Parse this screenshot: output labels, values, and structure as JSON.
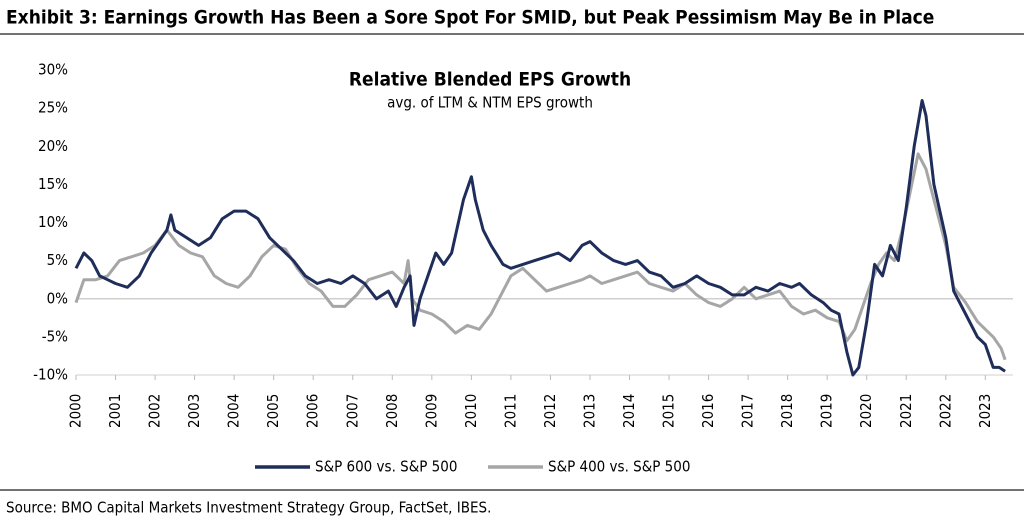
{
  "chart_data": {
    "type": "line",
    "title": "Exhibit 3: Earnings Growth Has Been a Sore Spot For SMID, but Peak Pessimism May Be in Place",
    "chart_title": "Relative Blended EPS Growth",
    "subtitle": "avg. of LTM & NTM EPS growth",
    "source": "Source: BMO Capital Markets Investment Strategy Group, FactSet, IBES.",
    "xlim": [
      2000,
      2023.7
    ],
    "xticks": [
      2000,
      2001,
      2002,
      2003,
      2004,
      2005,
      2006,
      2007,
      2008,
      2009,
      2010,
      2011,
      2012,
      2013,
      2014,
      2015,
      2016,
      2017,
      2018,
      2019,
      2020,
      2021,
      2022,
      2023
    ],
    "ylim": [
      -10,
      30
    ],
    "yticks": [
      {
        "value": 30,
        "label": "30%"
      },
      {
        "value": 25,
        "label": "25%"
      },
      {
        "value": 20,
        "label": "20%"
      },
      {
        "value": 15,
        "label": "15%"
      },
      {
        "value": 10,
        "label": "10%"
      },
      {
        "value": 5,
        "label": "5%"
      },
      {
        "value": 0,
        "label": "0%"
      },
      {
        "value": -5,
        "label": "-5%"
      },
      {
        "value": -10,
        "label": "-10%"
      }
    ],
    "series": [
      {
        "name": "S&P 600 vs. S&P 500",
        "color": "#1f2d5a",
        "x": [
          2000.0,
          2000.2,
          2000.4,
          2000.6,
          2000.8,
          2001.0,
          2001.3,
          2001.6,
          2001.9,
          2002.1,
          2002.3,
          2002.4,
          2002.5,
          2002.8,
          2003.1,
          2003.4,
          2003.7,
          2004.0,
          2004.3,
          2004.6,
          2004.9,
          2005.2,
          2005.5,
          2005.8,
          2006.1,
          2006.4,
          2006.7,
          2007.0,
          2007.3,
          2007.6,
          2007.9,
          2008.1,
          2008.3,
          2008.45,
          2008.55,
          2008.7,
          2008.9,
          2009.1,
          2009.3,
          2009.5,
          2009.8,
          2010.0,
          2010.1,
          2010.3,
          2010.5,
          2010.8,
          2011.0,
          2011.3,
          2011.6,
          2011.9,
          2012.2,
          2012.5,
          2012.8,
          2013.0,
          2013.3,
          2013.6,
          2013.9,
          2014.2,
          2014.5,
          2014.8,
          2015.1,
          2015.4,
          2015.7,
          2016.0,
          2016.3,
          2016.6,
          2016.9,
          2017.2,
          2017.5,
          2017.8,
          2018.1,
          2018.3,
          2018.6,
          2018.9,
          2019.1,
          2019.3,
          2019.5,
          2019.65,
          2019.8,
          2020.0,
          2020.2,
          2020.4,
          2020.6,
          2020.8,
          2021.0,
          2021.2,
          2021.4,
          2021.5,
          2021.7,
          2022.0,
          2022.2,
          2022.5,
          2022.8,
          2023.0,
          2023.2,
          2023.35,
          2023.5
        ],
        "values": [
          4,
          6,
          5,
          3,
          2.5,
          2,
          1.5,
          3,
          6,
          7.5,
          9,
          11,
          9,
          8,
          7,
          8,
          10.5,
          11.5,
          11.5,
          10.5,
          8,
          6.5,
          5,
          3,
          2,
          2.5,
          2,
          3,
          2,
          0,
          1,
          -1,
          1.5,
          3,
          -3.5,
          0,
          3,
          6,
          4.5,
          6,
          13,
          16,
          13,
          9,
          7,
          4.5,
          4,
          4.5,
          5,
          5.5,
          6,
          5,
          7,
          7.5,
          6,
          5,
          4.5,
          5,
          3.5,
          3,
          1.5,
          2,
          3,
          2,
          1.5,
          0.5,
          0.5,
          1.5,
          1,
          2,
          1.5,
          2,
          0.5,
          -0.5,
          -1.5,
          -2,
          -7,
          -10,
          -9,
          -3,
          4.5,
          3,
          7,
          5,
          12,
          20,
          26,
          24,
          15,
          8,
          1,
          -2,
          -5,
          -6,
          -9,
          -9,
          -9.5
        ]
      },
      {
        "name": "S&P 400 vs. S&P 500",
        "color": "#a6a6a6",
        "x": [
          2000.0,
          2000.2,
          2000.5,
          2000.8,
          2001.1,
          2001.4,
          2001.7,
          2002.0,
          2002.3,
          2002.6,
          2002.9,
          2003.2,
          2003.5,
          2003.8,
          2004.1,
          2004.4,
          2004.7,
          2005.0,
          2005.3,
          2005.6,
          2005.9,
          2006.2,
          2006.5,
          2006.8,
          2007.1,
          2007.4,
          2007.7,
          2008.0,
          2008.3,
          2008.4,
          2008.5,
          2008.7,
          2009.0,
          2009.3,
          2009.6,
          2009.9,
          2010.2,
          2010.5,
          2010.8,
          2011.0,
          2011.3,
          2011.6,
          2011.9,
          2012.2,
          2012.5,
          2012.8,
          2013.0,
          2013.3,
          2013.6,
          2013.9,
          2014.2,
          2014.5,
          2014.8,
          2015.1,
          2015.4,
          2015.7,
          2016.0,
          2016.3,
          2016.6,
          2016.9,
          2017.2,
          2017.5,
          2017.8,
          2018.1,
          2018.4,
          2018.7,
          2019.0,
          2019.3,
          2019.5,
          2019.7,
          2019.9,
          2020.1,
          2020.3,
          2020.5,
          2020.7,
          2020.9,
          2021.1,
          2021.3,
          2021.5,
          2021.7,
          2022.0,
          2022.2,
          2022.5,
          2022.8,
          2023.0,
          2023.2,
          2023.4,
          2023.5
        ],
        "values": [
          -0.5,
          2.5,
          2.5,
          3,
          5,
          5.5,
          6,
          7,
          9,
          7,
          6,
          5.5,
          3,
          2,
          1.5,
          3,
          5.5,
          7,
          6.5,
          4,
          2,
          1,
          -1,
          -1,
          0.5,
          2.5,
          3,
          3.5,
          2,
          5,
          0,
          -1.5,
          -2,
          -3,
          -4.5,
          -3.5,
          -4,
          -2,
          1,
          3,
          4,
          2.5,
          1,
          1.5,
          2,
          2.5,
          3,
          2,
          2.5,
          3,
          3.5,
          2,
          1.5,
          1,
          2,
          0.5,
          -0.5,
          -1,
          0,
          1.5,
          0,
          0.5,
          1,
          -1,
          -2,
          -1.5,
          -2.5,
          -3,
          -5.5,
          -4,
          -1,
          2,
          4.5,
          6,
          5,
          9,
          14,
          19,
          17,
          13,
          7,
          1.5,
          -0.5,
          -3,
          -4,
          -5,
          -6.5,
          -8
        ]
      }
    ]
  }
}
